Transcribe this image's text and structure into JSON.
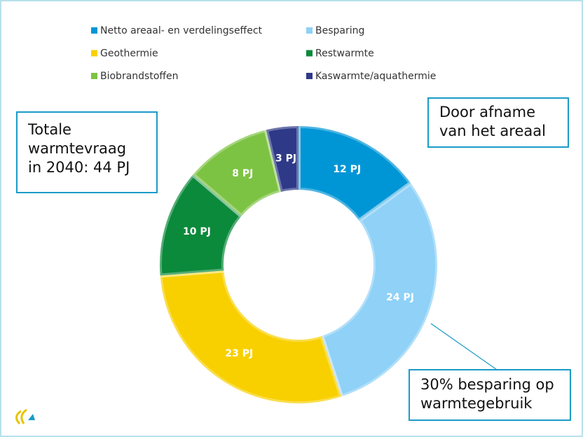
{
  "chart_data": {
    "type": "donut",
    "categories": [
      "Netto areaal- en verdelingseffect",
      "Besparing",
      "Geothermie",
      "Restwarmte",
      "Biobrandstoffen",
      "Kaswarmte/aquathermie"
    ],
    "values": [
      12,
      24,
      23,
      10,
      8,
      3
    ],
    "value_labels": [
      "12 PJ",
      "24 PJ",
      "23 PJ",
      "10 PJ",
      "8 PJ",
      "3 PJ"
    ],
    "colors": [
      "#0096d6",
      "#8fd1f7",
      "#f8d000",
      "#0b8a3b",
      "#7dc343",
      "#2e3a88"
    ],
    "annotations": [
      {
        "lines": [
          "Totale",
          "warmtevraag",
          "in 2040: 44 PJ"
        ]
      },
      {
        "lines": [
          "Door afname",
          "van het areaal"
        ]
      },
      {
        "lines": [
          "30% besparing op",
          "warmtegebruik"
        ]
      }
    ]
  }
}
